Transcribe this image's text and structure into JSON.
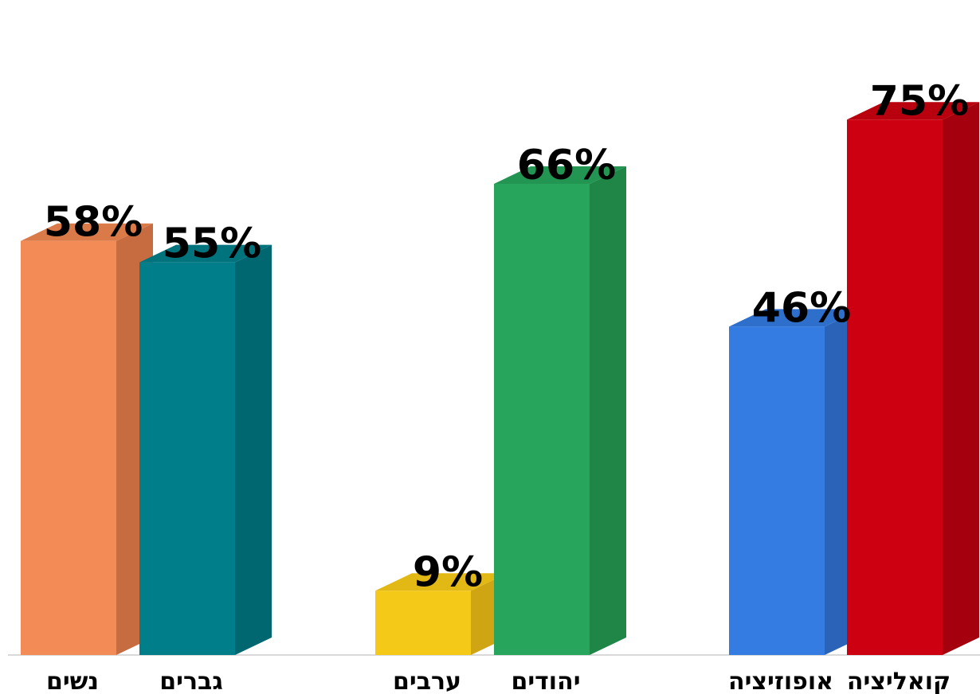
{
  "chart_data": {
    "type": "bar",
    "categories": [
      "נשים",
      "גברים",
      "ערבים",
      "יהודים",
      "אופוזיציה",
      "קואליציה"
    ],
    "values": [
      58,
      55,
      9,
      66,
      46,
      75
    ],
    "value_labels": [
      "58%",
      "55%",
      "9%",
      "66%",
      "46%",
      "75%"
    ],
    "ylim": [
      0,
      80
    ],
    "colors": [
      "#f28b55",
      "#007f8a",
      "#f5c918",
      "#27a55c",
      "#347be2",
      "#cc0011"
    ],
    "side_colors": [
      "#c76b40",
      "#006670",
      "#cfa514",
      "#1f8648",
      "#2a63b8",
      "#a5000e"
    ],
    "top_colors": [
      "#d97a48",
      "#00737d",
      "#e2b814",
      "#229552",
      "#2e6fcc",
      "#b8000f"
    ],
    "grid": false,
    "legend": "none"
  }
}
